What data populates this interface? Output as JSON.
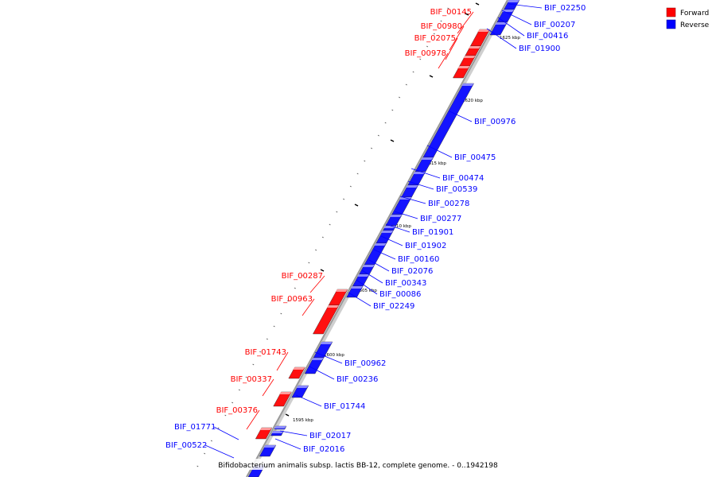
{
  "caption": "Bifidobacterium animalis subsp. lactis BB-12, complete genome. - 0..1942198",
  "legend": {
    "forward": {
      "label": "Forward",
      "color": "#ff0000"
    },
    "reverse": {
      "label": "Reverse",
      "color": "#0000ff"
    }
  },
  "colors": {
    "forward": "#ff0000",
    "reverse": "#0000ff",
    "backbone": "#999999"
  },
  "ruler": [
    {
      "label": "1595 kbp"
    },
    {
      "label": "1600 kbp"
    },
    {
      "label": "1605 kbp"
    },
    {
      "label": "1610 kbp"
    },
    {
      "label": "1615 kbp"
    },
    {
      "label": "1620 kbp"
    },
    {
      "label": "1625 kbp"
    }
  ],
  "genes": {
    "forward": [
      {
        "name": "BIF_00145"
      },
      {
        "name": "BIF_00980"
      },
      {
        "name": "BIF_02075"
      },
      {
        "name": "BIF_00978"
      },
      {
        "name": "BIF_00287"
      },
      {
        "name": "BIF_00963"
      },
      {
        "name": "BIF_01743"
      },
      {
        "name": "BIF_00337"
      },
      {
        "name": "BIF_00376"
      }
    ],
    "reverse": [
      {
        "name": "BIF_02250"
      },
      {
        "name": "BIF_00207"
      },
      {
        "name": "BIF_00416"
      },
      {
        "name": "BIF_01900"
      },
      {
        "name": "BIF_00976"
      },
      {
        "name": "BIF_00475"
      },
      {
        "name": "BIF_00474"
      },
      {
        "name": "BIF_00539"
      },
      {
        "name": "BIF_00278"
      },
      {
        "name": "BIF_00277"
      },
      {
        "name": "BIF_01901"
      },
      {
        "name": "BIF_01902"
      },
      {
        "name": "BIF_00160"
      },
      {
        "name": "BIF_02076"
      },
      {
        "name": "BIF_00343"
      },
      {
        "name": "BIF_00086"
      },
      {
        "name": "BIF_02249"
      },
      {
        "name": "BIF_00962"
      },
      {
        "name": "BIF_00236"
      },
      {
        "name": "BIF_01744"
      },
      {
        "name": "BIF_02017"
      },
      {
        "name": "BIF_02016"
      },
      {
        "name": "BIF_01771"
      },
      {
        "name": "BIF_00522"
      }
    ]
  }
}
